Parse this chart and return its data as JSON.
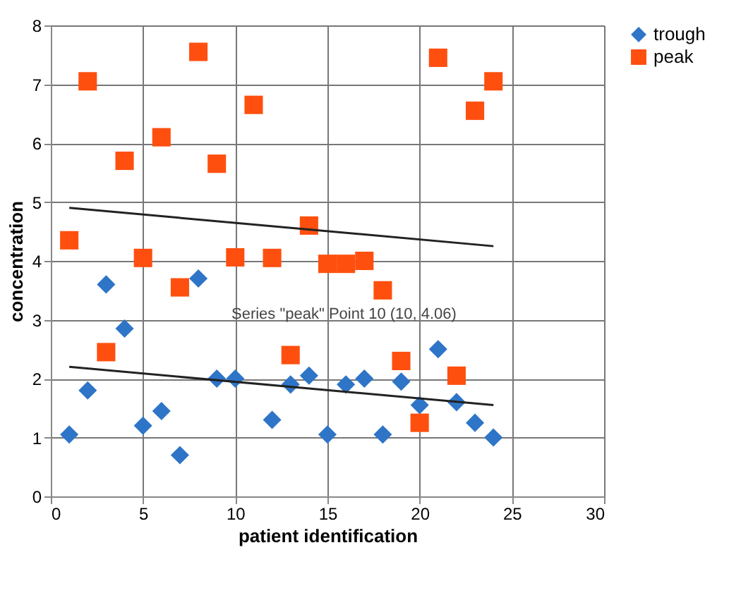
{
  "chart_data": {
    "type": "scatter",
    "xlabel": "patient identification",
    "ylabel": "concentration",
    "xlim": [
      0,
      30
    ],
    "xticks": [
      0,
      5,
      10,
      15,
      20,
      25,
      30
    ],
    "ylim": [
      0,
      8
    ],
    "yticks": [
      0,
      1,
      2,
      3,
      4,
      5,
      6,
      7,
      8
    ],
    "grid": true,
    "legend": "right",
    "series": [
      {
        "name": "trough",
        "color": "#2e75c8",
        "marker": "diamond",
        "x": [
          1,
          2,
          3,
          4,
          5,
          6,
          7,
          8,
          9,
          10,
          12,
          13,
          14,
          15,
          16,
          17,
          18,
          19,
          20,
          21,
          22,
          23,
          24
        ],
        "values": [
          1.05,
          1.8,
          3.6,
          2.85,
          1.2,
          1.45,
          0.7,
          3.7,
          2.0,
          2.0,
          1.3,
          1.9,
          2.05,
          1.05,
          1.9,
          2.0,
          1.05,
          1.95,
          1.55,
          2.5,
          1.6,
          1.25,
          1.0
        ]
      },
      {
        "name": "peak",
        "color": "#ff4f0f",
        "marker": "square",
        "x": [
          1,
          2,
          3,
          4,
          5,
          6,
          7,
          8,
          9,
          10,
          11,
          12,
          13,
          14,
          15,
          16,
          17,
          18,
          19,
          20,
          21,
          22,
          23,
          24
        ],
        "values": [
          4.35,
          7.05,
          2.45,
          5.7,
          4.05,
          6.1,
          3.55,
          7.55,
          5.65,
          4.06,
          6.65,
          4.05,
          2.4,
          4.6,
          3.95,
          3.95,
          4.0,
          3.5,
          2.3,
          1.25,
          7.45,
          2.05,
          6.55,
          7.05
        ]
      },
      {
        "type": "line",
        "color": "#222222",
        "x": [
          1,
          24
        ],
        "values": [
          4.9,
          4.25
        ]
      },
      {
        "type": "line",
        "color": "#222222",
        "x": [
          1,
          24
        ],
        "values": [
          2.2,
          1.55
        ]
      }
    ],
    "annotations": [
      "Series \"peak\" Point 10 (10, 4.06)"
    ]
  }
}
